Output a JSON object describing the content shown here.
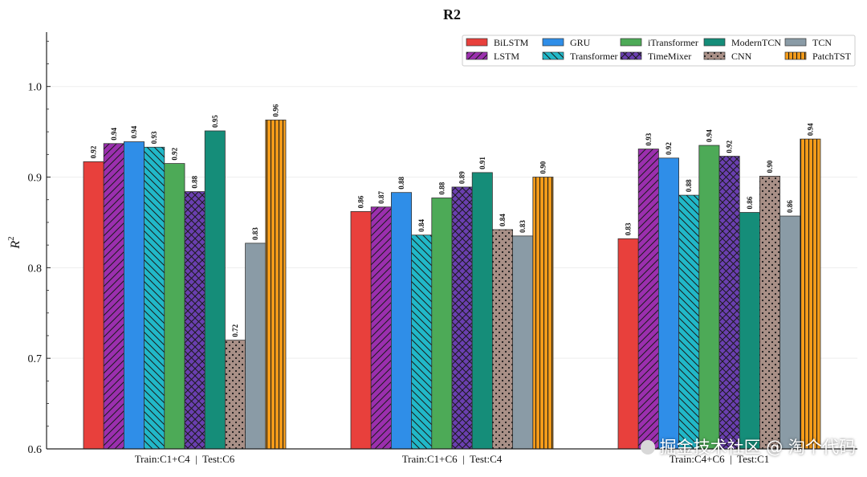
{
  "chart_data": {
    "type": "bar",
    "title": "R2",
    "xlabel": "",
    "ylabel": "R",
    "ylabel_superscript": "2",
    "ylim": [
      0.6,
      1.06
    ],
    "yticks": [
      "0.6",
      "0.7",
      "0.8",
      "0.9",
      "1.0"
    ],
    "legend_position": "top-right",
    "categories": [
      "Train:C1+C4  |  Test:C6",
      "Train:C1+C6  |  Test:C4",
      "Train:C4+C6  |  Test:C1"
    ],
    "series": [
      {
        "name": "BiLSTM",
        "color": "#e8403c",
        "pattern": "none",
        "values": [
          0.917,
          0.862,
          0.832
        ],
        "labels": [
          "0.92",
          "0.86",
          "0.83"
        ]
      },
      {
        "name": "LSTM",
        "color": "#9b2fae",
        "pattern": "diag-fwd",
        "values": [
          0.937,
          0.867,
          0.931
        ],
        "labels": [
          "0.94",
          "0.87",
          "0.93"
        ]
      },
      {
        "name": "GRU",
        "color": "#2f8ee8",
        "pattern": "none",
        "values": [
          0.939,
          0.883,
          0.921
        ],
        "labels": [
          "0.94",
          "0.88",
          "0.92"
        ]
      },
      {
        "name": "Transformer",
        "color": "#21b8c8",
        "pattern": "diag-back",
        "values": [
          0.933,
          0.836,
          0.88
        ],
        "labels": [
          "0.93",
          "0.84",
          "0.88"
        ]
      },
      {
        "name": "iTransformer",
        "color": "#4daa57",
        "pattern": "none",
        "values": [
          0.915,
          0.877,
          0.935
        ],
        "labels": [
          "0.92",
          "0.88",
          "0.94"
        ]
      },
      {
        "name": "TimeMixer",
        "color": "#6a3fb0",
        "pattern": "cross",
        "values": [
          0.884,
          0.889,
          0.923
        ],
        "labels": [
          "0.88",
          "0.89",
          "0.92"
        ]
      },
      {
        "name": "ModernTCN",
        "color": "#158d79",
        "pattern": "none",
        "values": [
          0.951,
          0.905,
          0.861
        ],
        "labels": [
          "0.95",
          "0.91",
          "0.86"
        ]
      },
      {
        "name": "CNN",
        "color": "#a99087",
        "pattern": "dots",
        "values": [
          0.72,
          0.842,
          0.901
        ],
        "labels": [
          "0.72",
          "0.84",
          "0.90"
        ]
      },
      {
        "name": "TCN",
        "color": "#8a9ba6",
        "pattern": "none",
        "values": [
          0.827,
          0.835,
          0.857
        ],
        "labels": [
          "0.83",
          "0.83",
          "0.86"
        ]
      },
      {
        "name": "PatchTST",
        "color": "#f59c1a",
        "pattern": "vertical",
        "values": [
          0.963,
          0.9,
          0.942
        ],
        "labels": [
          "0.96",
          "0.90",
          "0.94"
        ]
      }
    ]
  },
  "watermark": {
    "text": "掘金技术社区 @ 淘个代码"
  }
}
